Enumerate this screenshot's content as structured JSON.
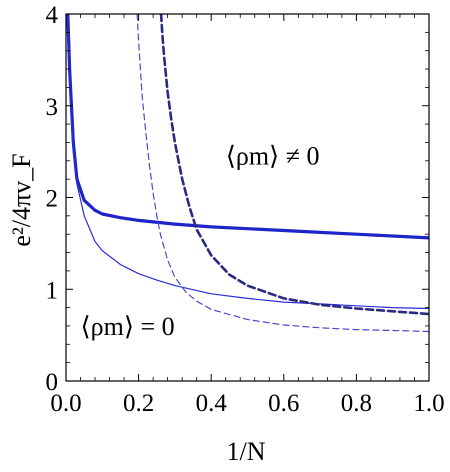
{
  "chart_data": {
    "type": "line",
    "xlabel": "1/N",
    "ylabel": "e²/4πv_F",
    "xlim": [
      0.0,
      1.0
    ],
    "ylim": [
      0,
      4
    ],
    "x_ticks": [
      0.0,
      0.2,
      0.4,
      0.6,
      0.8,
      1.0
    ],
    "x_tick_labels": [
      "0.0",
      "0.2",
      "0.4",
      "0.6",
      "0.8",
      "1.0"
    ],
    "y_ticks": [
      0,
      1,
      2,
      3,
      4
    ],
    "y_tick_labels": [
      "0",
      "1",
      "2",
      "3",
      "4"
    ],
    "grid": false,
    "annotations": [
      {
        "text": "⟨ρm⟩ ≠ 0",
        "x": 0.44,
        "y": 2.36
      },
      {
        "text": "⟨ρm⟩ = 0",
        "x": 0.04,
        "y": 0.5
      }
    ],
    "series": [
      {
        "style": "solid-thick",
        "color": "#1f24c8",
        "x": [
          0.005,
          0.01,
          0.02,
          0.03,
          0.05,
          0.08,
          0.1,
          0.15,
          0.2,
          0.3,
          0.4,
          0.5,
          0.6,
          0.7,
          0.8,
          0.9,
          1.0
        ],
        "y": [
          4.0,
          3.4,
          2.6,
          2.2,
          1.97,
          1.86,
          1.82,
          1.78,
          1.75,
          1.71,
          1.68,
          1.66,
          1.64,
          1.62,
          1.6,
          1.58,
          1.56
        ]
      },
      {
        "style": "solid-thin",
        "color": "#2a2ed2",
        "x": [
          0.005,
          0.01,
          0.02,
          0.03,
          0.05,
          0.08,
          0.1,
          0.15,
          0.2,
          0.25,
          0.3,
          0.4,
          0.5,
          0.6,
          0.7,
          0.8,
          0.9,
          1.0
        ],
        "y": [
          4.0,
          3.2,
          2.5,
          2.15,
          1.8,
          1.52,
          1.42,
          1.27,
          1.17,
          1.1,
          1.04,
          0.95,
          0.9,
          0.86,
          0.84,
          0.82,
          0.8,
          0.79
        ]
      },
      {
        "style": "dashed-thick",
        "color": "#2a2a80",
        "x": [
          0.262,
          0.265,
          0.27,
          0.28,
          0.29,
          0.3,
          0.31,
          0.32,
          0.34,
          0.36,
          0.4,
          0.45,
          0.5,
          0.6,
          0.7,
          0.8,
          0.9,
          1.0
        ],
        "y": [
          4.0,
          3.8,
          3.55,
          3.15,
          2.85,
          2.6,
          2.4,
          2.2,
          1.9,
          1.65,
          1.37,
          1.16,
          1.04,
          0.9,
          0.83,
          0.79,
          0.76,
          0.73
        ]
      },
      {
        "style": "dashed-thin",
        "color": "#4a4ad0",
        "x": [
          0.196,
          0.2,
          0.205,
          0.21,
          0.22,
          0.23,
          0.24,
          0.25,
          0.26,
          0.28,
          0.3,
          0.33,
          0.36,
          0.4,
          0.5,
          0.6,
          0.7,
          0.8,
          0.9,
          1.0
        ],
        "y": [
          4.0,
          3.7,
          3.4,
          3.1,
          2.7,
          2.35,
          2.05,
          1.8,
          1.6,
          1.32,
          1.13,
          0.97,
          0.87,
          0.78,
          0.67,
          0.61,
          0.58,
          0.56,
          0.55,
          0.54
        ]
      }
    ]
  }
}
